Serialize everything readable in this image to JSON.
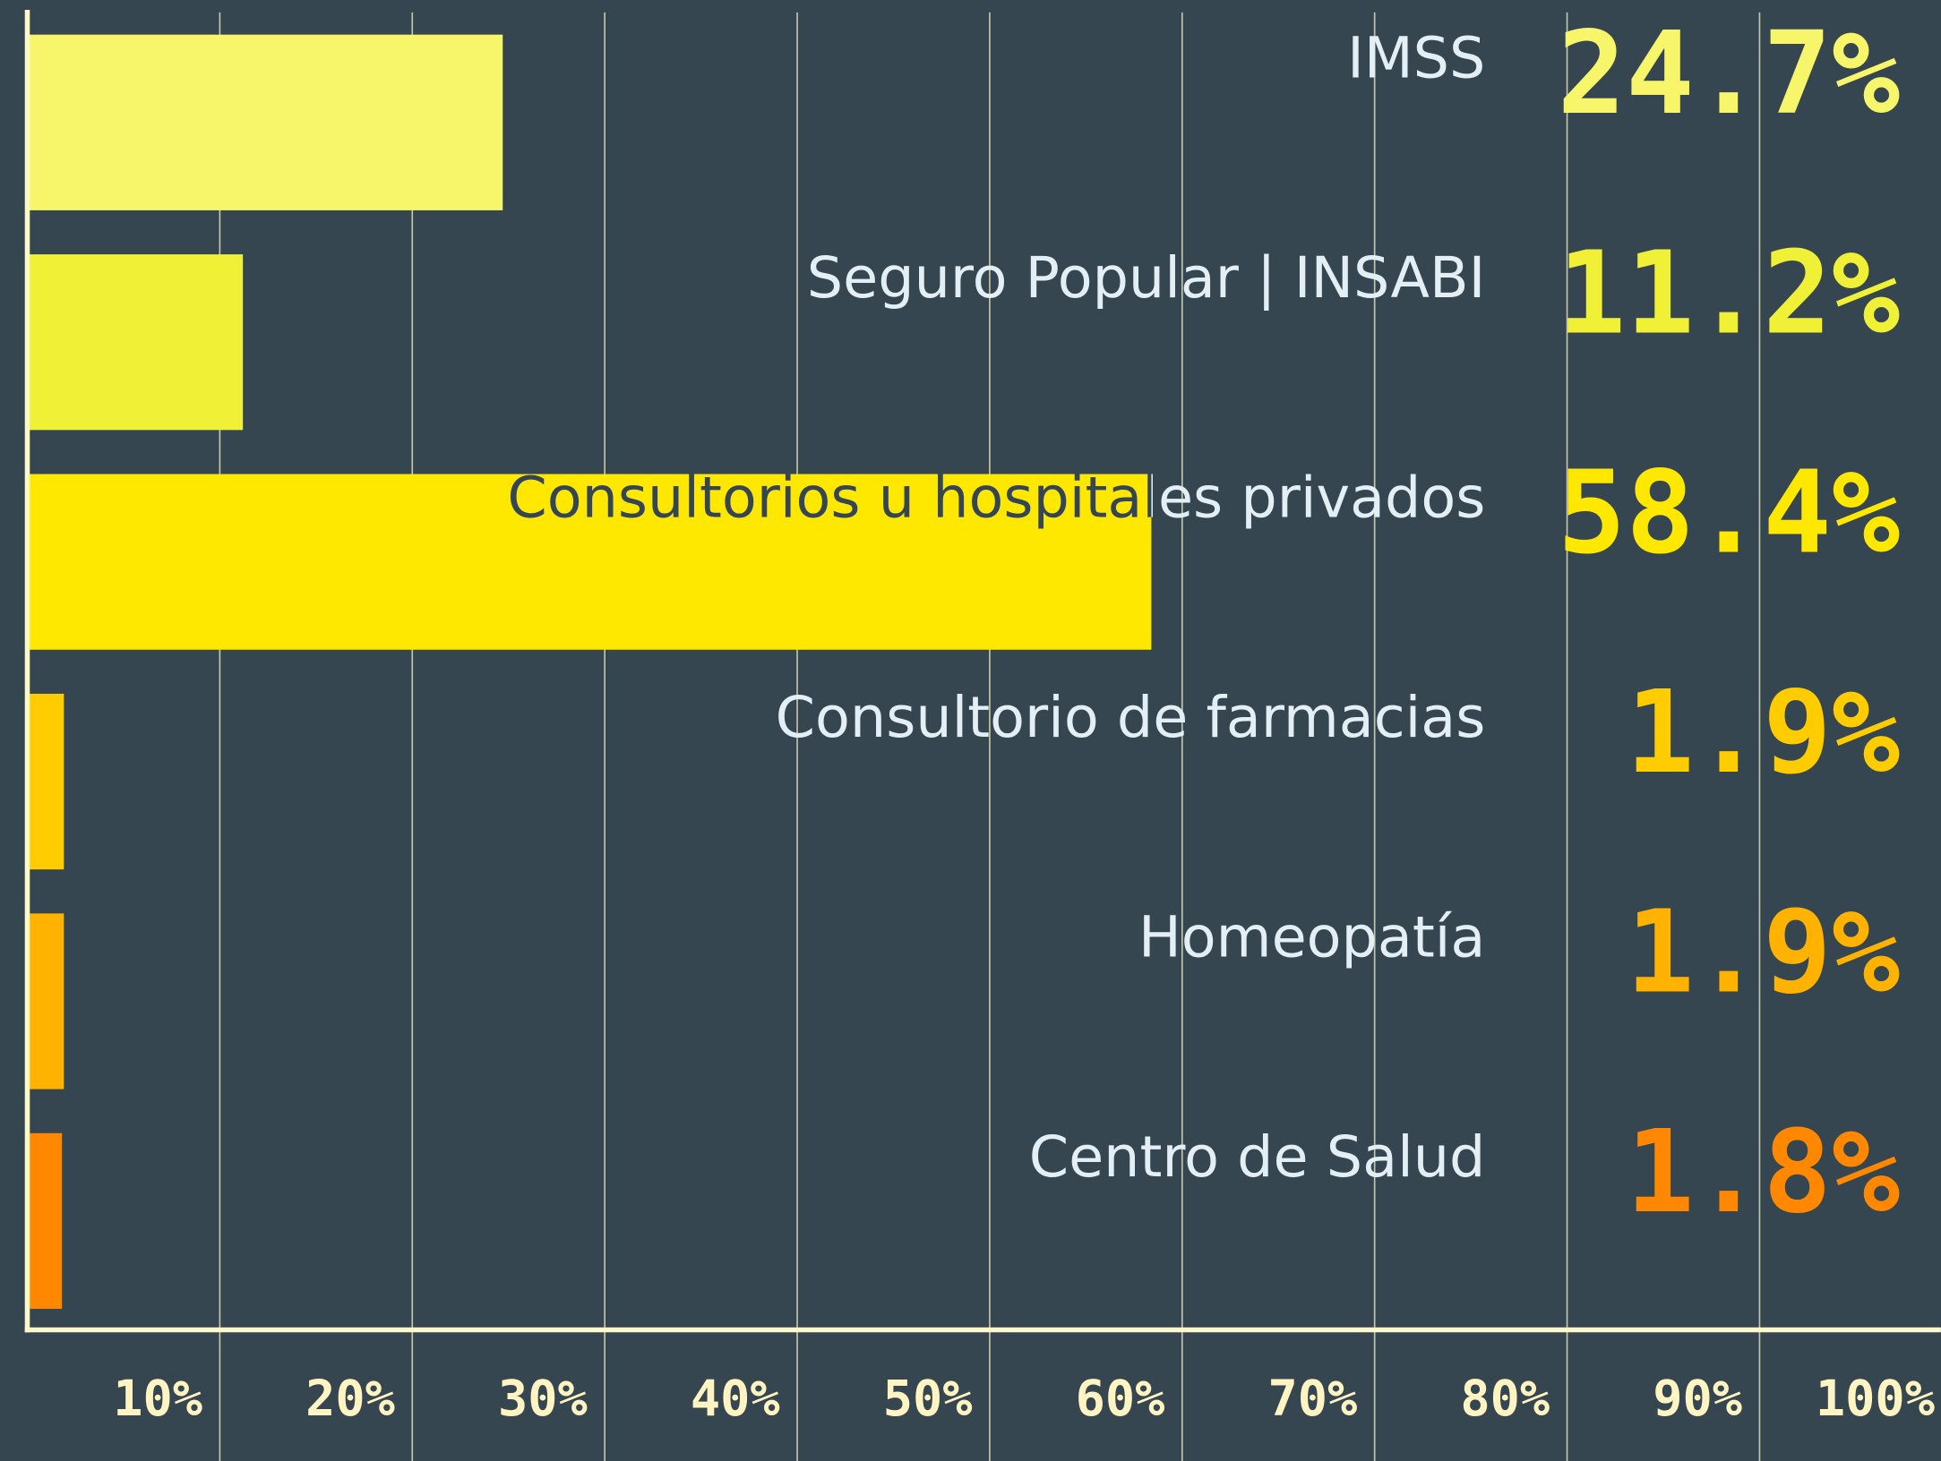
{
  "chart_data": {
    "type": "bar",
    "orientation": "horizontal",
    "categories": [
      "IMSS",
      "Seguro Popular | INSABI",
      "Consultorios u hospitales privados",
      "Consultorio de farmacias",
      "Homeopatía",
      "Centro de Salud"
    ],
    "values": [
      24.7,
      11.2,
      58.4,
      1.9,
      1.9,
      1.8
    ],
    "value_labels": [
      "24.7%",
      "11.2%",
      "58.4%",
      "1.9%",
      "1.9%",
      "1.8%"
    ],
    "colors": [
      "#f7f56a",
      "#f0f036",
      "#ffe800",
      "#ffcc00",
      "#ffb300",
      "#ff8800"
    ],
    "xlim": [
      0,
      100
    ],
    "xticks": [
      {
        "value": 10,
        "label": "10%"
      },
      {
        "value": 20,
        "label": "20%"
      },
      {
        "value": 30,
        "label": "30%"
      },
      {
        "value": 40,
        "label": "40%"
      },
      {
        "value": 50,
        "label": "50%"
      },
      {
        "value": 60,
        "label": "60%"
      },
      {
        "value": 70,
        "label": "70%"
      },
      {
        "value": 80,
        "label": "80%"
      },
      {
        "value": 90,
        "label": "90%"
      },
      {
        "value": 100,
        "label": "100%"
      }
    ],
    "grid": true
  }
}
